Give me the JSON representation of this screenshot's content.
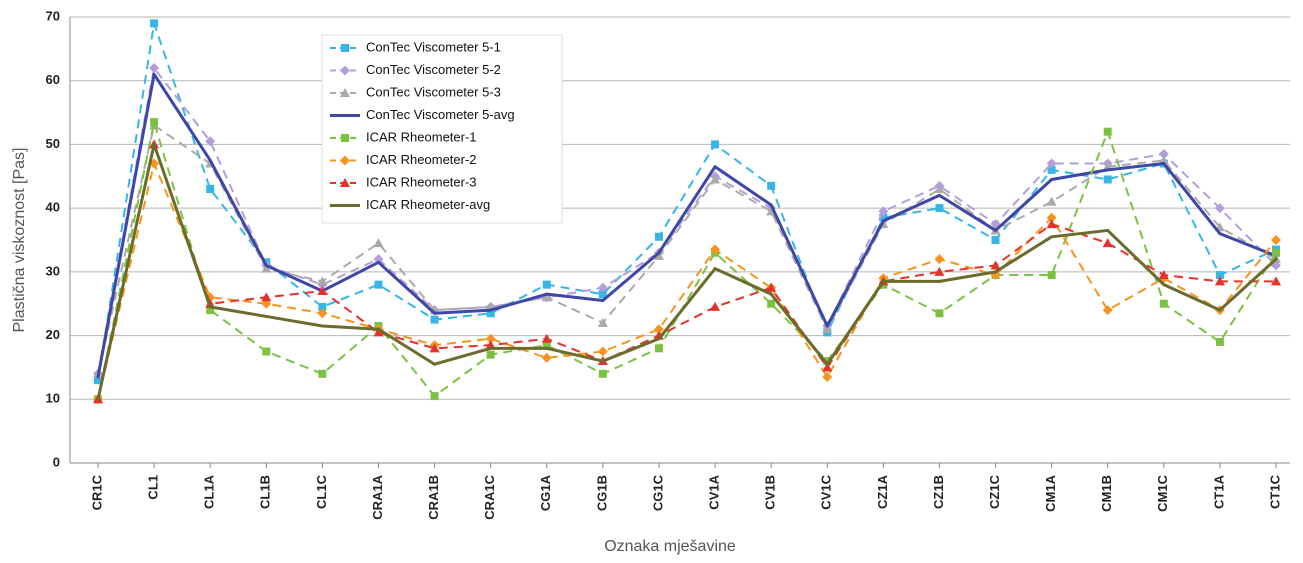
{
  "chart_data": {
    "type": "line",
    "x_label": "Oznaka mješavine",
    "y_label": "Plastična viskoznost [Pas]",
    "categories": [
      "CR1C",
      "CL1",
      "CL1A",
      "CL1B",
      "CL1C",
      "CRA1A",
      "CRA1B",
      "CRA1C",
      "CG1A",
      "CG1B",
      "CG1C",
      "CV1A",
      "CV1B",
      "CV1C",
      "CZ1A",
      "CZ1B",
      "CZ1C",
      "CM1A",
      "CM1B",
      "CM1C",
      "CT1A",
      "CT1C"
    ],
    "ylim": [
      0,
      70
    ],
    "yticks": [
      0,
      10,
      20,
      30,
      40,
      50,
      60,
      70
    ],
    "grid": true,
    "legend": "upper left",
    "series": [
      {
        "name": "ConTec Viscometer 5-1",
        "color": "#35b6e6",
        "dashed": true,
        "marker": "square",
        "values": [
          13,
          69,
          43,
          31.5,
          24.5,
          28,
          22.5,
          23.5,
          28,
          26.5,
          35.5,
          50,
          43.5,
          20.5,
          38.5,
          40,
          35,
          46,
          44.5,
          47,
          29.5,
          33.5
        ]
      },
      {
        "name": "ConTec Viscometer 5-2",
        "color": "#b39ddb",
        "dashed": true,
        "marker": "diamond",
        "values": [
          14,
          62,
          50.5,
          31,
          28,
          32,
          24,
          24.5,
          26,
          27.5,
          33,
          45,
          40,
          21.5,
          39.5,
          43.5,
          37.5,
          47,
          47,
          48.5,
          40,
          31
        ]
      },
      {
        "name": "ConTec Viscometer 5-3",
        "color": "#aaaaaa",
        "dashed": true,
        "marker": "triangle",
        "values": [
          14,
          53,
          47,
          30.5,
          28.5,
          34.5,
          24,
          24.5,
          26,
          22,
          32.5,
          44.5,
          39.5,
          21,
          37.5,
          43,
          36.5,
          41,
          46.5,
          47.5,
          37,
          32
        ]
      },
      {
        "name": "ConTec Viscometer 5-avg",
        "color": "#3e47a6",
        "dashed": false,
        "marker": "none",
        "values": [
          13.5,
          61,
          47.5,
          31,
          27,
          31.5,
          23.5,
          24,
          26.5,
          25.5,
          33,
          46.5,
          40.5,
          21.5,
          38,
          42,
          36.5,
          44.5,
          46,
          47,
          36,
          32.5
        ]
      },
      {
        "name": "ICAR Rheometer-1",
        "color": "#7cc242",
        "dashed": true,
        "marker": "square",
        "values": [
          10,
          53.5,
          24,
          17.5,
          14,
          21.5,
          10.5,
          17,
          18.5,
          14,
          18,
          33,
          25,
          16,
          28,
          23.5,
          29.5,
          29.5,
          52,
          25,
          19,
          33
        ]
      },
      {
        "name": "ICAR Rheometer-2",
        "color": "#f7941d",
        "dashed": true,
        "marker": "diamond",
        "values": [
          10,
          47,
          26,
          25,
          23.5,
          21,
          18.5,
          19.5,
          16.5,
          17.5,
          21,
          33.5,
          27.5,
          13.5,
          29,
          32,
          29.5,
          38.5,
          24,
          29,
          24,
          35
        ]
      },
      {
        "name": "ICAR Rheometer-3",
        "color": "#e8312c",
        "dashed": true,
        "marker": "triangle",
        "values": [
          10,
          50,
          25,
          26,
          27,
          20.5,
          18,
          18.5,
          19.5,
          16,
          20,
          24.5,
          27.5,
          15,
          28.5,
          30,
          31,
          37.5,
          34.5,
          29.5,
          28.5,
          28.5
        ]
      },
      {
        "name": "ICAR Rheometer-avg",
        "color": "#6b6b2b",
        "dashed": false,
        "marker": "none",
        "values": [
          10,
          50,
          24.5,
          23,
          21.5,
          21,
          15.5,
          18,
          18,
          16,
          19.5,
          30.5,
          26.5,
          15.5,
          28.5,
          28.5,
          30,
          35.5,
          36.5,
          28,
          24,
          32
        ]
      }
    ]
  }
}
